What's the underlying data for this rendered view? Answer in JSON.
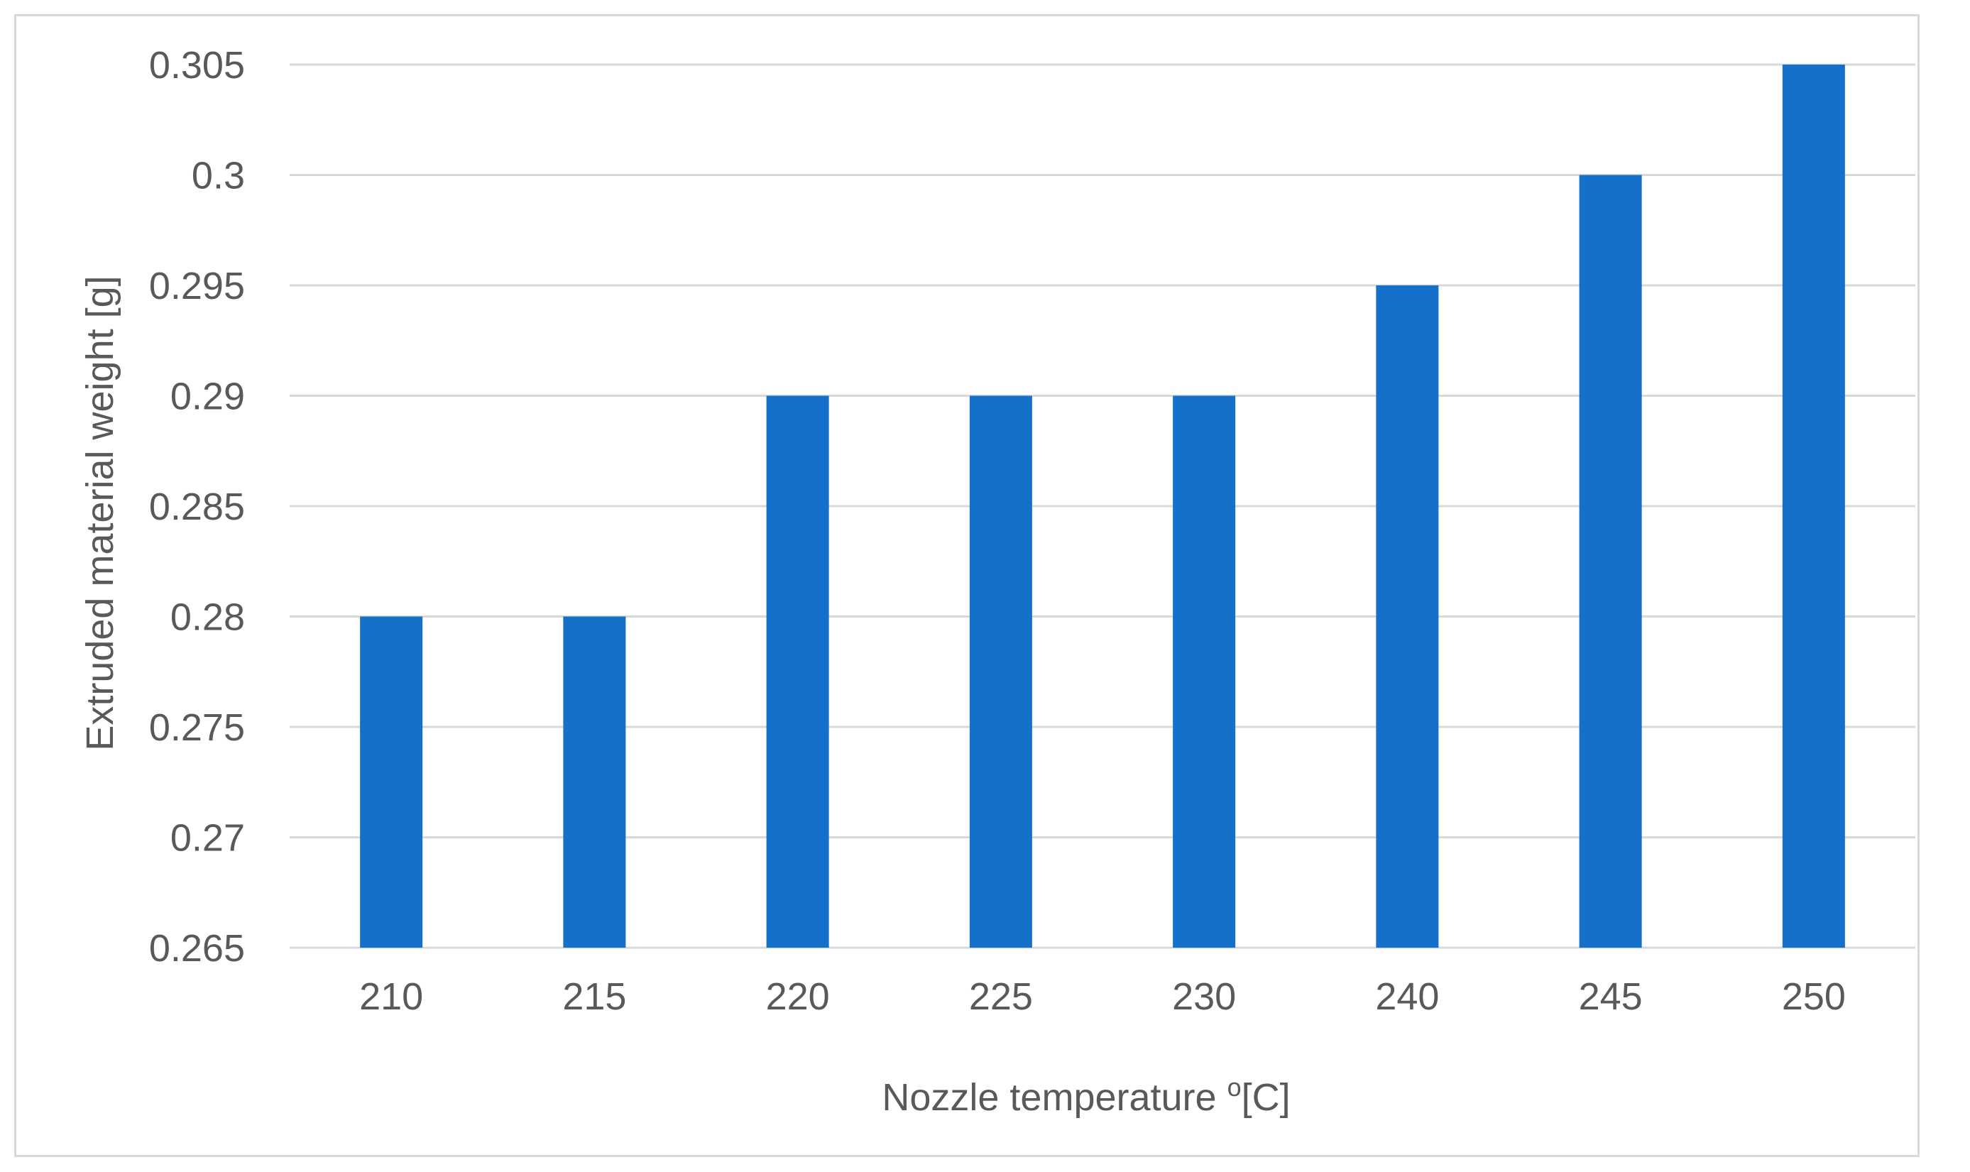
{
  "chart_data": {
    "type": "bar",
    "title": "",
    "xlabel": "Nozzle temperature",
    "xlabel_sup": "o",
    "xlabel_suffix": "[C]",
    "ylabel": "Extruded material weight  [g]",
    "categories": [
      "210",
      "215",
      "220",
      "225",
      "230",
      "240",
      "245",
      "250"
    ],
    "series": [
      {
        "color": "#1470C8",
        "values": [
          0.28,
          0.28,
          0.29,
          0.29,
          0.29,
          0.295,
          0.3,
          0.305
        ]
      }
    ],
    "ylim": [
      0.265,
      0.305
    ],
    "yticks": [
      "0.265",
      "0.27",
      "0.275",
      "0.28",
      "0.285",
      "0.29",
      "0.295",
      "0.3",
      "0.305"
    ],
    "grid": true,
    "legend": "none"
  }
}
